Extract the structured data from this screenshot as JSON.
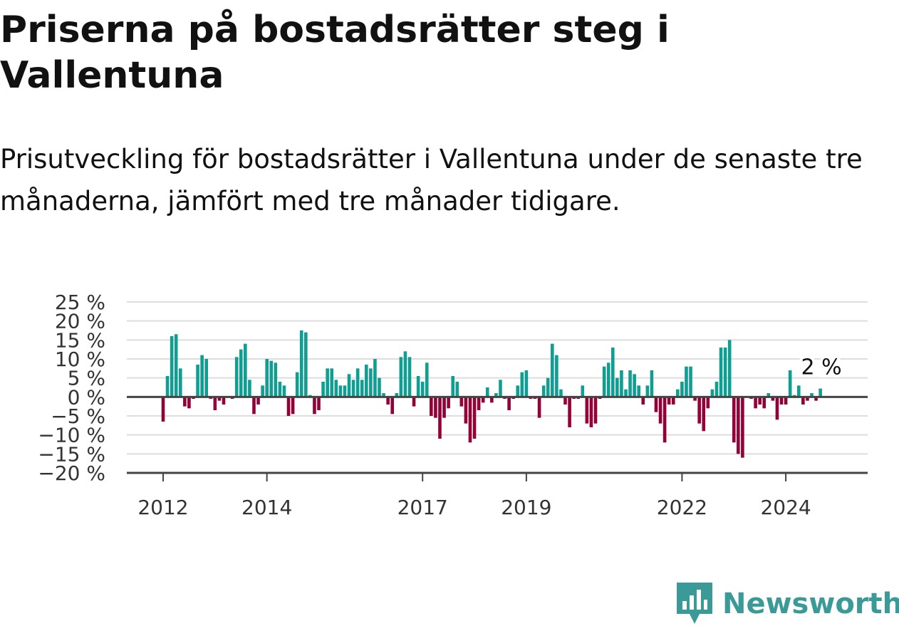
{
  "header": {
    "title": "Priserna på bostadsrätter steg i Vallentuna",
    "subtitle": "Prisutveckling för bostadsrätter i Vallentuna under de senaste tre månaderna, jämfört med tre månader tidigare."
  },
  "brand": {
    "name": "Newsworthy",
    "icon": "bar-chart-speech-bubble-icon",
    "color": "#3a9a97"
  },
  "colors": {
    "positive": "#0f9e92",
    "negative": "#930038",
    "zero_line": "#444444",
    "grid": "#dddddd"
  },
  "chart_data": {
    "type": "bar",
    "title": "Priserna på bostadsrätter steg i Vallentuna",
    "subtitle": "Prisutveckling för bostadsrätter i Vallentuna under de senaste tre månaderna, jämfört med tre månader tidigare.",
    "xlabel": "",
    "ylabel": "",
    "ylim": [
      -20,
      25
    ],
    "y_ticks": [
      25,
      20,
      15,
      10,
      5,
      0,
      -5,
      -10,
      -15,
      -20
    ],
    "y_tick_labels": [
      "25 %",
      "20 %",
      "15 %",
      "10 %",
      "5 %",
      "0 %",
      "−5 %",
      "−10 %",
      "−15 %",
      "−20 %"
    ],
    "x_start": "2012-01",
    "x_ticks": [
      "2012",
      "2014",
      "2017",
      "2019",
      "2022",
      "2024"
    ],
    "grid": true,
    "annotation": {
      "text": "2 %"
    },
    "series": [
      {
        "values": [
          -6.5,
          5.5,
          16,
          16.5,
          7.5,
          -2.5,
          -3,
          -0.5,
          8.5,
          11,
          10,
          -0.5,
          -3.5,
          -1,
          -2,
          0,
          -0.5,
          10.5,
          12.5,
          14,
          4.5,
          -4.5,
          -2,
          3,
          10,
          9.5,
          9,
          4,
          3,
          -5,
          -4.5,
          6.5,
          17.5,
          17,
          0.5,
          -4.5,
          -3.5,
          4,
          7.5,
          7.5,
          4.5,
          3,
          3,
          6,
          4.5,
          7.5,
          4.5,
          8.5,
          7.5,
          10,
          5,
          1,
          -2,
          -4.5,
          1,
          10.5,
          12,
          10.5,
          -2.5,
          5.5,
          4,
          9,
          -5,
          -5.5,
          -11,
          -5.5,
          -3,
          5.5,
          4,
          -2.5,
          -7,
          -12,
          -11,
          -3.5,
          -1.5,
          2.5,
          -1.5,
          1,
          4.5,
          -0.5,
          -3.5,
          -0.5,
          3,
          6.5,
          7,
          -0.5,
          -0.5,
          -5.5,
          3,
          5,
          14,
          11,
          2,
          -2,
          -8,
          -0.5,
          -0.5,
          3,
          -7,
          -8,
          -7,
          -0.5,
          8,
          9,
          13,
          5,
          7,
          2,
          7,
          6,
          3,
          -2,
          3,
          7,
          -4,
          -7,
          -12,
          -2,
          -2,
          2,
          4,
          8,
          8,
          -1,
          -7,
          -9,
          -3,
          2,
          4,
          13,
          13,
          15,
          -12,
          -15,
          -16,
          0,
          -0.5,
          -3,
          -2,
          -3,
          1,
          -1,
          -6,
          -2,
          -2,
          7,
          0.5,
          3,
          -2,
          -1,
          1,
          -1,
          2.2
        ]
      }
    ]
  }
}
